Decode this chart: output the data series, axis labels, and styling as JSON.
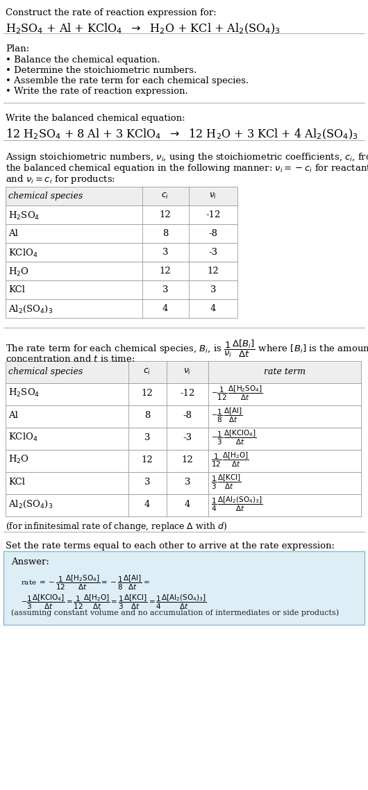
{
  "bg_color": "#ffffff",
  "species_tex": [
    "H$_2$SO$_4$",
    "Al",
    "KClO$_4$",
    "H$_2$O",
    "KCl",
    "Al$_2$(SO$_4$)$_3$"
  ],
  "ci_vals": [
    "12",
    "8",
    "3",
    "12",
    "3",
    "4"
  ],
  "ni_vals": [
    "-12",
    "-8",
    "-3",
    "12",
    "3",
    "4"
  ],
  "plan_items": [
    "• Balance the chemical equation.",
    "• Determine the stoichiometric numbers.",
    "• Assemble the rate term for each chemical species.",
    "• Write the rate of reaction expression."
  ],
  "answer_note": "(assuming constant volume and no accumulation of intermediates or side products)"
}
